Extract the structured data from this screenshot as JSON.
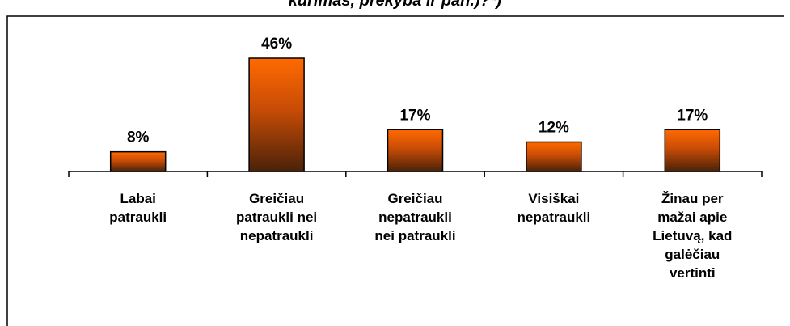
{
  "chart_data": {
    "type": "bar",
    "title": "kurimas, prekyba ir pan.)?*)",
    "categories": [
      "Labai\npatraukli",
      "Greičiau\npatraukli nei\nnepatraukli",
      "Greičiau\nnepatraukli\nnei patraukli",
      "Visiškai\nnepatraukli",
      "Žinau per\nmažai apie\nLietuvą, kad\ngalėčiau\nvertinti"
    ],
    "values": [
      8,
      46,
      17,
      12,
      17
    ],
    "value_labels": [
      "8%",
      "46%",
      "17%",
      "12%",
      "17%"
    ],
    "color": "#ff6600"
  }
}
